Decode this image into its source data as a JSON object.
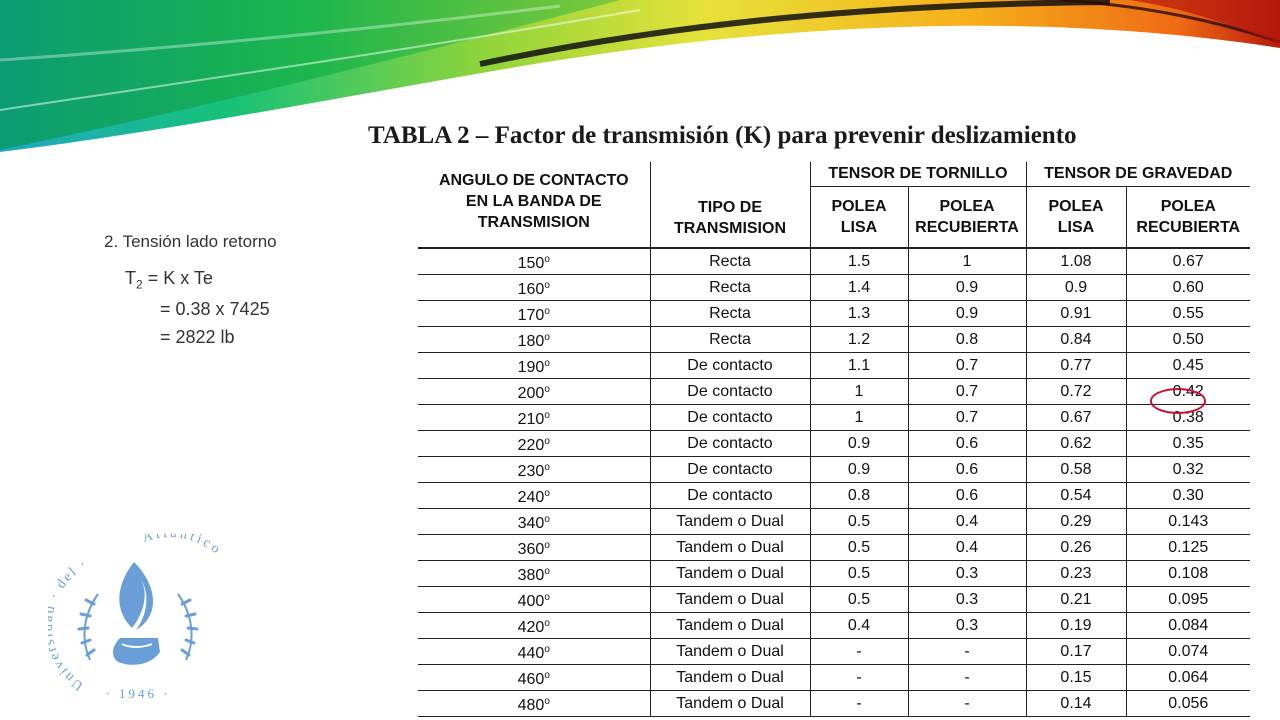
{
  "title": "TABLA 2 – Factor de transmisión (K) para prevenir deslizamiento",
  "tension": {
    "subtitle": "2. Tensión lado retorno",
    "t_symbol": "T",
    "t_sub": "2",
    "line1_rest": " = K x Te",
    "line2": "= 0.38 x 7425",
    "line3": "= 2822 lb"
  },
  "table": {
    "headers": {
      "angle": [
        "ANGULO DE CONTACTO",
        "EN LA BANDA DE",
        "TRANSMISION"
      ],
      "type": [
        "TIPO DE",
        "TRANSMISION"
      ],
      "group_screw": "TENSOR DE TORNILLO",
      "group_gravity": "TENSOR DE GRAVEDAD",
      "smooth": [
        "POLEA",
        "LISA"
      ],
      "lagged": [
        "POLEA",
        "RECUBIERTA"
      ]
    },
    "degree": "o",
    "rows": [
      {
        "angle": "150",
        "type": "Recta",
        "screw_smooth": "1.5",
        "screw_lagged": "1",
        "grav_smooth": "1.08",
        "grav_lagged": "0.67"
      },
      {
        "angle": "160",
        "type": "Recta",
        "screw_smooth": "1.4",
        "screw_lagged": "0.9",
        "grav_smooth": "0.9",
        "grav_lagged": "0.60"
      },
      {
        "angle": "170",
        "type": "Recta",
        "screw_smooth": "1.3",
        "screw_lagged": "0.9",
        "grav_smooth": "0.91",
        "grav_lagged": "0.55"
      },
      {
        "angle": "180",
        "type": "Recta",
        "screw_smooth": "1.2",
        "screw_lagged": "0.8",
        "grav_smooth": "0.84",
        "grav_lagged": "0.50"
      },
      {
        "angle": "190",
        "type": "De contacto",
        "screw_smooth": "1.1",
        "screw_lagged": "0.7",
        "grav_smooth": "0.77",
        "grav_lagged": "0.45"
      },
      {
        "angle": "200",
        "type": "De contacto",
        "screw_smooth": "1",
        "screw_lagged": "0.7",
        "grav_smooth": "0.72",
        "grav_lagged": "0.42"
      },
      {
        "angle": "210",
        "type": "De contacto",
        "screw_smooth": "1",
        "screw_lagged": "0.7",
        "grav_smooth": "0.67",
        "grav_lagged": "0.38"
      },
      {
        "angle": "220",
        "type": "De contacto",
        "screw_smooth": "0.9",
        "screw_lagged": "0.6",
        "grav_smooth": "0.62",
        "grav_lagged": "0.35"
      },
      {
        "angle": "230",
        "type": "De contacto",
        "screw_smooth": "0.9",
        "screw_lagged": "0.6",
        "grav_smooth": "0.58",
        "grav_lagged": "0.32"
      },
      {
        "angle": "240",
        "type": "De contacto",
        "screw_smooth": "0.8",
        "screw_lagged": "0.6",
        "grav_smooth": "0.54",
        "grav_lagged": "0.30"
      },
      {
        "angle": "340",
        "type": "Tandem o Dual",
        "screw_smooth": "0.5",
        "screw_lagged": "0.4",
        "grav_smooth": "0.29",
        "grav_lagged": "0.143"
      },
      {
        "angle": "360",
        "type": "Tandem o Dual",
        "screw_smooth": "0.5",
        "screw_lagged": "0.4",
        "grav_smooth": "0.26",
        "grav_lagged": "0.125"
      },
      {
        "angle": "380",
        "type": "Tandem o Dual",
        "screw_smooth": "0.5",
        "screw_lagged": "0.3",
        "grav_smooth": "0.23",
        "grav_lagged": "0.108"
      },
      {
        "angle": "400",
        "type": "Tandem o Dual",
        "screw_smooth": "0.5",
        "screw_lagged": "0.3",
        "grav_smooth": "0.21",
        "grav_lagged": "0.095"
      },
      {
        "angle": "420",
        "type": "Tandem o Dual",
        "screw_smooth": "0.4",
        "screw_lagged": "0.3",
        "grav_smooth": "0.19",
        "grav_lagged": "0.084"
      },
      {
        "angle": "440",
        "type": "Tandem o Dual",
        "screw_smooth": "-",
        "screw_lagged": "-",
        "grav_smooth": "0.17",
        "grav_lagged": "0.074"
      },
      {
        "angle": "460",
        "type": "Tandem o Dual",
        "screw_smooth": "-",
        "screw_lagged": "-",
        "grav_smooth": "0.15",
        "grav_lagged": "0.064"
      },
      {
        "angle": "480",
        "type": "Tandem o Dual",
        "screw_smooth": "-",
        "screw_lagged": "-",
        "grav_smooth": "0.14",
        "grav_lagged": "0.056"
      }
    ]
  },
  "seal": {
    "text_left": "Universidad · del ·",
    "text_right": "Atlántico",
    "year": "· 1946 ·",
    "color": "#6a9ed8"
  },
  "colors": {
    "highlight_circle": "#c8102e"
  }
}
